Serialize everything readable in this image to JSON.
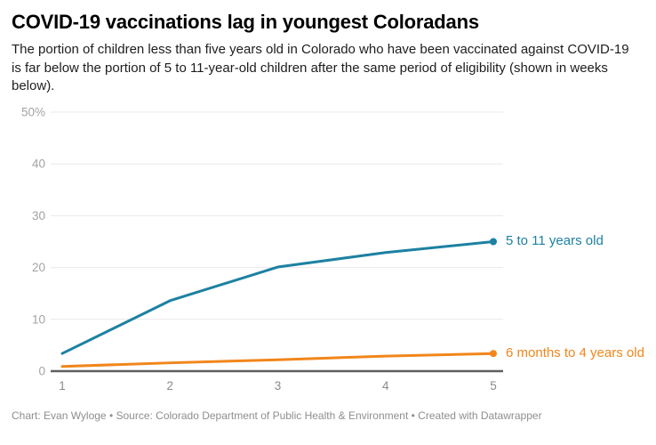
{
  "header": {
    "title": "COVID-19 vaccinations lag in youngest Coloradans",
    "description": "The portion of children less than five years old in Colorado who have been vaccinated against COVID-19 is far below the portion of 5 to 11-year-old children after the same period of eligibility (shown in weeks below)."
  },
  "colors": {
    "series_blue": "#1d81a2",
    "series_orange": "#f1861b",
    "gridline": "#e9e9e9",
    "baseline": "#5f5f5f",
    "y_tick_label": "#a3a3a3",
    "x_tick_label": "#8a8a8a"
  },
  "chart_data": {
    "type": "line",
    "x": [
      1,
      2,
      3,
      4,
      5
    ],
    "x_tick_labels": [
      "1",
      "2",
      "3",
      "4",
      "5"
    ],
    "y_ticks": [
      0,
      10,
      20,
      30,
      40,
      50
    ],
    "y_tick_labels": [
      "0",
      "10",
      "20",
      "30",
      "40",
      "50%"
    ],
    "ylim": [
      0,
      50
    ],
    "xlim": [
      1,
      5
    ],
    "grid": true,
    "legend_position": "direct-labels-at-line-end",
    "title": "COVID-19 vaccinations lag in youngest Coloradans",
    "xlabel": "",
    "ylabel": "",
    "series": [
      {
        "name": "5 to 11 years old",
        "color": "#1d81a2",
        "values": [
          3.4,
          13.6,
          20.1,
          22.9,
          25.0
        ]
      },
      {
        "name": "6 months to 4 years old",
        "color": "#f1861b",
        "values": [
          0.9,
          1.6,
          2.2,
          2.9,
          3.4
        ]
      }
    ]
  },
  "footer": {
    "text": "Chart: Evan Wyloge • Source: Colorado Department of Public Health & Environment • Created with Datawrapper"
  }
}
